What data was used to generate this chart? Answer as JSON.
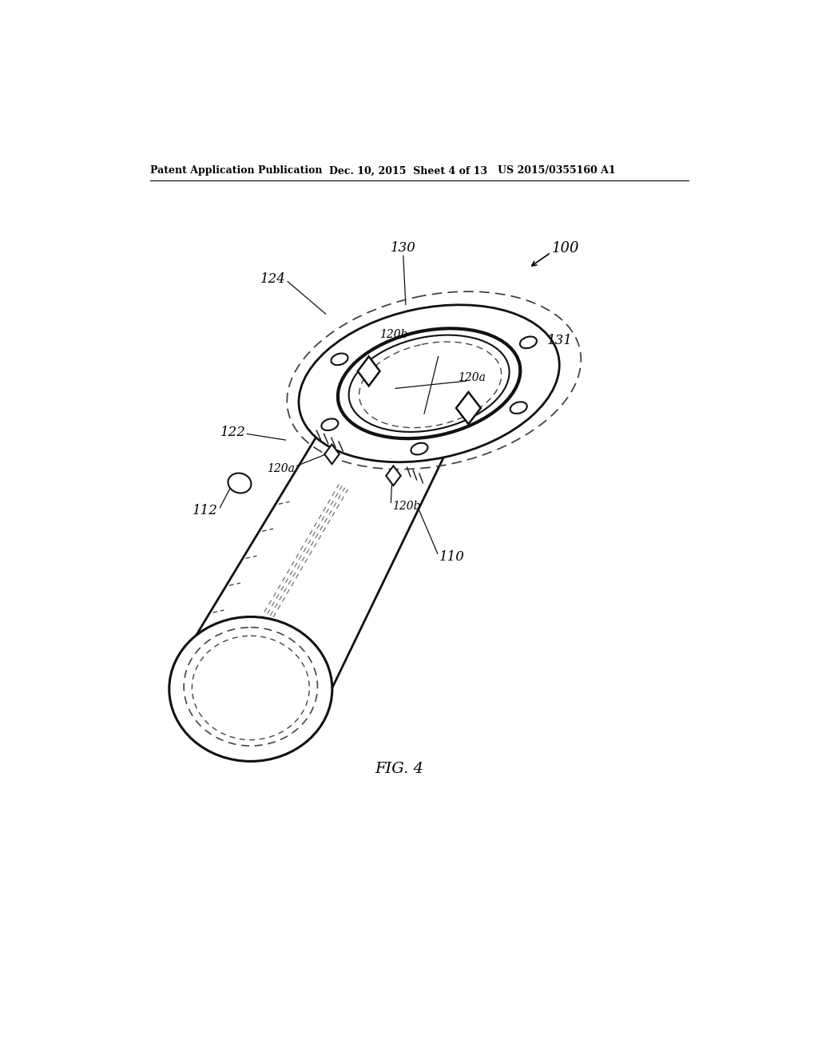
{
  "bg_color": "#ffffff",
  "header_left": "Patent Application Publication",
  "header_center": "Dec. 10, 2015  Sheet 4 of 13",
  "header_right": "US 2015/0355160 A1",
  "fig_label": "FIG. 4",
  "line_color": "#111111",
  "dashed_color": "#444444"
}
